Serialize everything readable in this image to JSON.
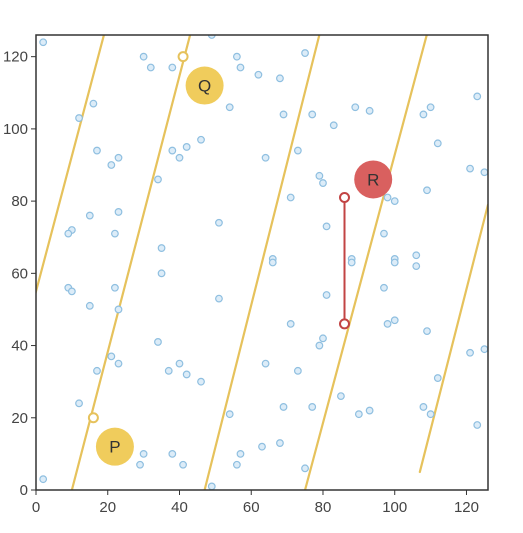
{
  "colors": {
    "background": "#ffffff",
    "frame": "#333333",
    "line": "#e6c25c",
    "dot_fill": "#dcecf8",
    "dot_stroke": "#8fbfe0",
    "badge_yellow": "#f0cc5c",
    "badge_red": "#d9605f",
    "segment": "#c24444",
    "endpoint_yellow": "#e6c25c",
    "endpoint_red": "#c24444"
  },
  "axes": {
    "x": {
      "min": 0,
      "max": 126,
      "ticks": [
        "0",
        "20",
        "40",
        "60",
        "80",
        "100",
        "120"
      ]
    },
    "y": {
      "min": 0,
      "max": 126,
      "ticks": [
        "0",
        "20",
        "40",
        "60",
        "80",
        "100",
        "120"
      ]
    }
  },
  "lines": [
    {
      "p1": [
        -4,
        40
      ],
      "p2": [
        20,
        130
      ]
    },
    {
      "p1": [
        10,
        0
      ],
      "p2": [
        44,
        130
      ]
    },
    {
      "p1": [
        47,
        0
      ],
      "p2": [
        80,
        130
      ]
    },
    {
      "p1": [
        75,
        0
      ],
      "p2": [
        110,
        130
      ]
    },
    {
      "p1": [
        107,
        5
      ],
      "p2": [
        126,
        79
      ]
    }
  ],
  "dots": [
    [
      2,
      124
    ],
    [
      30,
      120
    ],
    [
      32,
      117
    ],
    [
      38,
      117
    ],
    [
      49,
      126
    ],
    [
      56,
      120
    ],
    [
      57,
      117
    ],
    [
      62,
      115
    ],
    [
      68,
      114
    ],
    [
      75,
      121
    ],
    [
      16,
      107
    ],
    [
      12,
      103
    ],
    [
      17,
      94
    ],
    [
      21,
      90
    ],
    [
      23,
      92
    ],
    [
      38,
      94
    ],
    [
      40,
      92
    ],
    [
      42,
      95
    ],
    [
      46,
      97
    ],
    [
      54,
      106
    ],
    [
      64,
      92
    ],
    [
      69,
      104
    ],
    [
      73,
      94
    ],
    [
      77,
      104
    ],
    [
      83,
      101
    ],
    [
      89,
      106
    ],
    [
      93,
      105
    ],
    [
      108,
      104
    ],
    [
      110,
      106
    ],
    [
      112,
      96
    ],
    [
      123,
      109
    ],
    [
      79,
      87
    ],
    [
      80,
      85
    ],
    [
      34,
      86
    ],
    [
      121,
      89
    ],
    [
      125,
      88
    ],
    [
      109,
      83
    ],
    [
      98,
      81
    ],
    [
      100,
      80
    ],
    [
      71,
      81
    ],
    [
      23,
      77
    ],
    [
      15,
      76
    ],
    [
      10,
      72
    ],
    [
      9,
      71
    ],
    [
      22,
      71
    ],
    [
      35,
      67
    ],
    [
      51,
      74
    ],
    [
      81,
      73
    ],
    [
      97,
      71
    ],
    [
      35,
      60
    ],
    [
      66,
      64
    ],
    [
      66,
      63
    ],
    [
      88,
      64
    ],
    [
      88,
      63
    ],
    [
      100,
      64
    ],
    [
      100,
      63
    ],
    [
      106,
      65
    ],
    [
      106,
      62
    ],
    [
      9,
      56
    ],
    [
      10,
      55
    ],
    [
      15,
      51
    ],
    [
      22,
      56
    ],
    [
      23,
      50
    ],
    [
      51,
      53
    ],
    [
      81,
      54
    ],
    [
      97,
      56
    ],
    [
      71,
      46
    ],
    [
      80,
      42
    ],
    [
      79,
      40
    ],
    [
      98,
      46
    ],
    [
      100,
      47
    ],
    [
      109,
      44
    ],
    [
      121,
      38
    ],
    [
      125,
      39
    ],
    [
      34,
      41
    ],
    [
      37,
      33
    ],
    [
      40,
      35
    ],
    [
      42,
      32
    ],
    [
      46,
      30
    ],
    [
      21,
      37
    ],
    [
      23,
      35
    ],
    [
      17,
      33
    ],
    [
      64,
      35
    ],
    [
      73,
      33
    ],
    [
      112,
      31
    ],
    [
      12,
      24
    ],
    [
      69,
      23
    ],
    [
      77,
      23
    ],
    [
      85,
      26
    ],
    [
      54,
      21
    ],
    [
      90,
      21
    ],
    [
      93,
      22
    ],
    [
      108,
      23
    ],
    [
      110,
      21
    ],
    [
      123,
      18
    ],
    [
      30,
      10
    ],
    [
      29,
      7
    ],
    [
      38,
      10
    ],
    [
      41,
      7
    ],
    [
      56,
      7
    ],
    [
      57,
      10
    ],
    [
      63,
      12
    ],
    [
      68,
      13
    ],
    [
      75,
      6
    ],
    [
      49,
      1
    ],
    [
      2,
      3
    ]
  ],
  "segment": {
    "from": [
      86,
      81
    ],
    "to": [
      86,
      46
    ]
  },
  "endpoints": [
    {
      "pos": [
        41,
        120
      ],
      "color": "endpoint_yellow"
    },
    {
      "pos": [
        16,
        20
      ],
      "color": "endpoint_yellow"
    },
    {
      "pos": [
        86,
        81
      ],
      "color": "endpoint_red"
    },
    {
      "pos": [
        86,
        46
      ],
      "color": "endpoint_red"
    }
  ],
  "badges": [
    {
      "label": "Q",
      "pos": [
        47,
        112
      ],
      "color": "badge_yellow"
    },
    {
      "label": "R",
      "pos": [
        94,
        86
      ],
      "color": "badge_red"
    },
    {
      "label": "P",
      "pos": [
        22,
        12
      ],
      "color": "badge_yellow"
    }
  ]
}
